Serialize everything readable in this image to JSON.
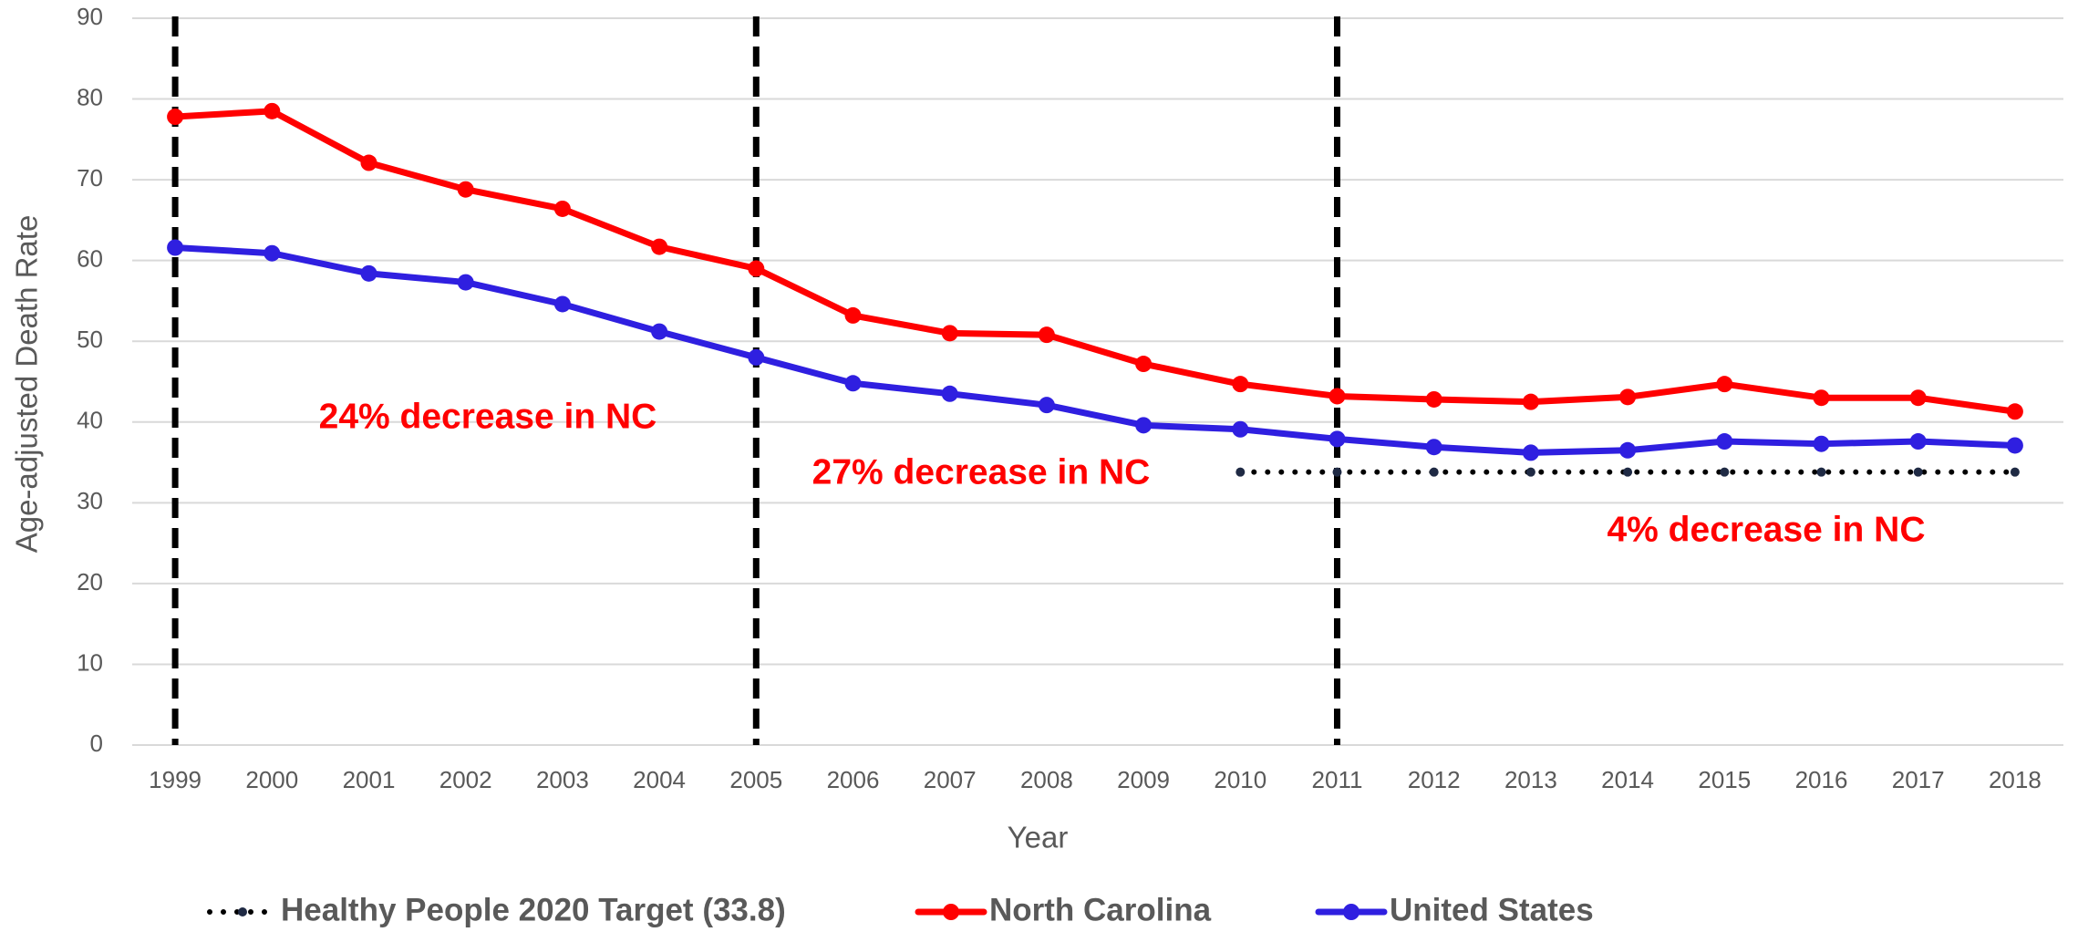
{
  "chart_data": {
    "type": "line",
    "x_label": "Year",
    "y_label": "Age-adjusted Death Rate",
    "categories": [
      "1999",
      "2000",
      "2001",
      "2002",
      "2003",
      "2004",
      "2005",
      "2006",
      "2007",
      "2008",
      "2009",
      "2010",
      "2011",
      "2012",
      "2013",
      "2014",
      "2015",
      "2016",
      "2017",
      "2018"
    ],
    "series": [
      {
        "name": "Healthy People 2020 Target (33.8)",
        "color": "#000000",
        "style": "dotted",
        "values": [
          null,
          null,
          null,
          null,
          null,
          null,
          null,
          null,
          null,
          null,
          null,
          33.8,
          33.8,
          33.8,
          33.8,
          33.8,
          33.8,
          33.8,
          33.8,
          33.8
        ]
      },
      {
        "name": "North Carolina",
        "color": "#ff0000",
        "style": "solid",
        "values": [
          77.8,
          78.5,
          72.1,
          68.8,
          66.4,
          61.7,
          59.0,
          53.2,
          51.0,
          50.8,
          47.2,
          44.7,
          43.2,
          42.8,
          42.5,
          43.1,
          44.7,
          43.0,
          43.0,
          41.3
        ]
      },
      {
        "name": "United States",
        "color": "#2f1fe0",
        "style": "solid",
        "values": [
          61.6,
          60.9,
          58.4,
          57.3,
          54.6,
          51.2,
          48.0,
          44.8,
          43.5,
          42.1,
          39.6,
          39.1,
          37.9,
          36.9,
          36.2,
          36.5,
          37.6,
          37.3,
          37.6,
          37.1
        ]
      }
    ],
    "reference_lines": [
      "1999",
      "2005",
      "2011"
    ],
    "annotations": [
      "24% decrease in NC",
      "27% decrease in NC",
      "4% decrease in NC"
    ],
    "ylim": [
      0,
      90
    ],
    "yticks": [
      0,
      10,
      20,
      30,
      40,
      50,
      60,
      70,
      80,
      90
    ],
    "grid": true,
    "legend": "bottom"
  }
}
